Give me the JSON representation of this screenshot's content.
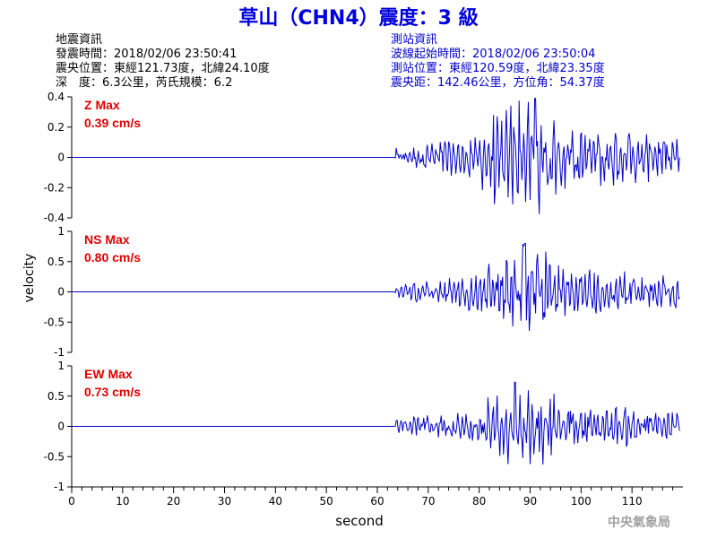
{
  "header": {
    "title": "草山（CHN4）震度：3 級",
    "title_color": "#0000dd"
  },
  "quake_info": {
    "heading": "地震資訊",
    "time": "發震時間：2018/02/06 23:50:41",
    "epicenter": "震央位置：東經121.73度，北緯24.10度",
    "depth_magnitude": "深　度：6.3公里，芮氏規模：6.2"
  },
  "station_info": {
    "heading": "測站資訊",
    "start_time": "波線起始時間：2018/02/06 23:50:04",
    "location": "測站位置：東經120.59度，北緯23.35度",
    "distance": "震央距：142.46公里，方位角：54.37度",
    "color": "#0000cc"
  },
  "watermark": "中央氣象局",
  "chart_data": {
    "type": "line",
    "xlabel": "second",
    "ylabel": "velocity",
    "x_range": [
      0,
      120
    ],
    "x_ticks": [
      0,
      10,
      20,
      30,
      40,
      50,
      60,
      70,
      80,
      90,
      100,
      110
    ],
    "line_color": "#0000cc",
    "grid": false,
    "panels": [
      {
        "name": "Z",
        "max_label": "Z Max",
        "max_value": "0.39 cm/s",
        "ylim": [
          -0.4,
          0.4
        ],
        "y_ticks": [
          -0.4,
          -0.2,
          0,
          0.2,
          0.4
        ],
        "y_tick_labels": [
          "-0.4",
          "-0.2",
          "0",
          "0.2",
          "0.4"
        ],
        "signal_onset": 63.5,
        "peak_time": 91,
        "peak_value": 0.39
      },
      {
        "name": "NS",
        "max_label": "NS Max",
        "max_value": "0.80 cm/s",
        "ylim": [
          -1,
          1
        ],
        "y_ticks": [
          -1,
          -0.5,
          0,
          0.5,
          1
        ],
        "y_tick_labels": [
          "-1",
          "-0.5",
          "0",
          "0.5",
          "1"
        ],
        "signal_onset": 63.5,
        "peak_time": 89,
        "peak_value": 0.8
      },
      {
        "name": "EW",
        "max_label": "EW Max",
        "max_value": "0.73 cm/s",
        "ylim": [
          -1,
          1
        ],
        "y_ticks": [
          -1,
          -0.5,
          0,
          0.5,
          1
        ],
        "y_tick_labels": [
          "-1",
          "-0.5",
          "0",
          "0.5",
          "1"
        ],
        "signal_onset": 63.5,
        "peak_time": 87,
        "peak_value": 0.73
      }
    ]
  }
}
